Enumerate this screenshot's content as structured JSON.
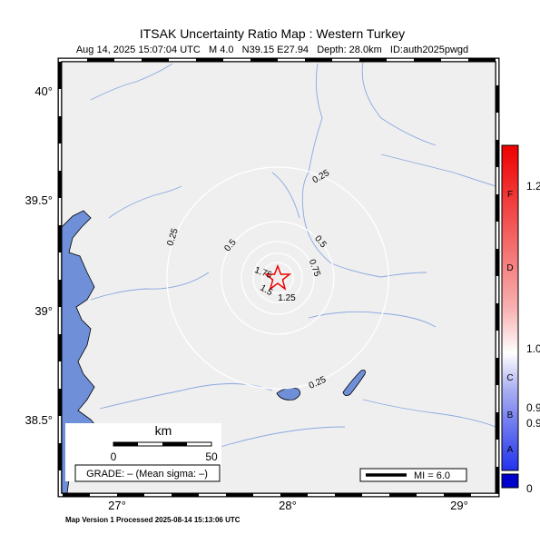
{
  "header": {
    "title": "ITSAK Uncertainty Ratio Map : Western Turkey",
    "subtitle": "Aug 14, 2025 15:07:04 UTC   M 4.0   N39.15 E27.94   Depth: 28.0km   ID:auth2025pwgd"
  },
  "axes": {
    "lat_labels": [
      "40°",
      "39.5°",
      "39°",
      "38.5°"
    ],
    "lon_labels": [
      "27°",
      "28°",
      "29°"
    ]
  },
  "contour_labels": [
    "0.25",
    "0.25",
    "0.25",
    "0.5",
    "0.5",
    "0.75",
    "1.75",
    "1.5",
    "1.25"
  ],
  "colorbar": {
    "letters": [
      "F",
      "D",
      "C",
      "B",
      "A"
    ],
    "values": [
      "1.2",
      "1.0",
      "0.9",
      "0.9",
      "0"
    ]
  },
  "scale": {
    "unit": "km",
    "ticks": [
      "0",
      "50"
    ]
  },
  "grade": "GRADE: – (Mean sigma: –)",
  "legend": {
    "mi": "MI = 6.0"
  },
  "footer": "Map Version 1 Processed 2025-08-14 15:13:06 UTC"
}
